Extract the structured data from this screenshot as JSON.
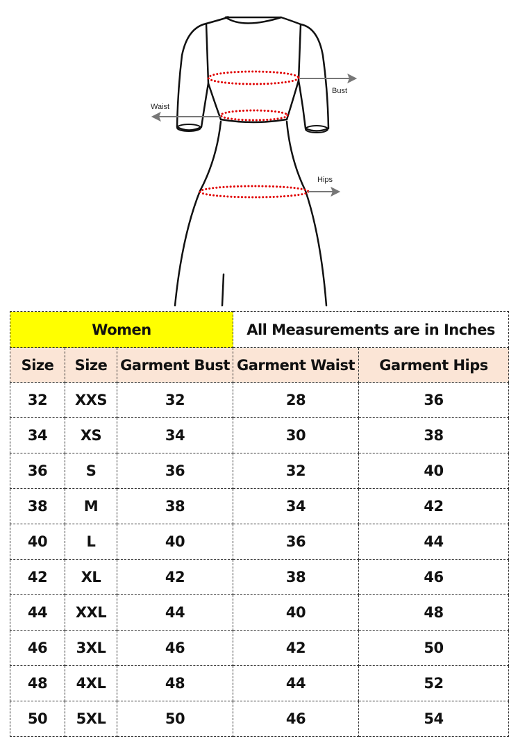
{
  "diagram": {
    "labels": {
      "bust": "Bust",
      "waist": "Waist",
      "hips": "Hips"
    },
    "measure_color": "#e00000"
  },
  "table": {
    "title": "Women",
    "note": "All Measurements are in Inches",
    "title_bg": "#ffff00",
    "header_bg": "#fbe5d6",
    "columns": [
      "Size",
      "Size",
      "Garment Bust",
      "Garment Waist",
      "Garment Hips"
    ],
    "rows": [
      [
        "32",
        "XXS",
        "32",
        "28",
        "36"
      ],
      [
        "34",
        "XS",
        "34",
        "30",
        "38"
      ],
      [
        "36",
        "S",
        "36",
        "32",
        "40"
      ],
      [
        "38",
        "M",
        "38",
        "34",
        "42"
      ],
      [
        "40",
        "L",
        "40",
        "36",
        "44"
      ],
      [
        "42",
        "XL",
        "42",
        "38",
        "46"
      ],
      [
        "44",
        "XXL",
        "44",
        "40",
        "48"
      ],
      [
        "46",
        "3XL",
        "46",
        "42",
        "50"
      ],
      [
        "48",
        "4XL",
        "48",
        "44",
        "52"
      ],
      [
        "50",
        "5XL",
        "50",
        "46",
        "54"
      ]
    ]
  }
}
